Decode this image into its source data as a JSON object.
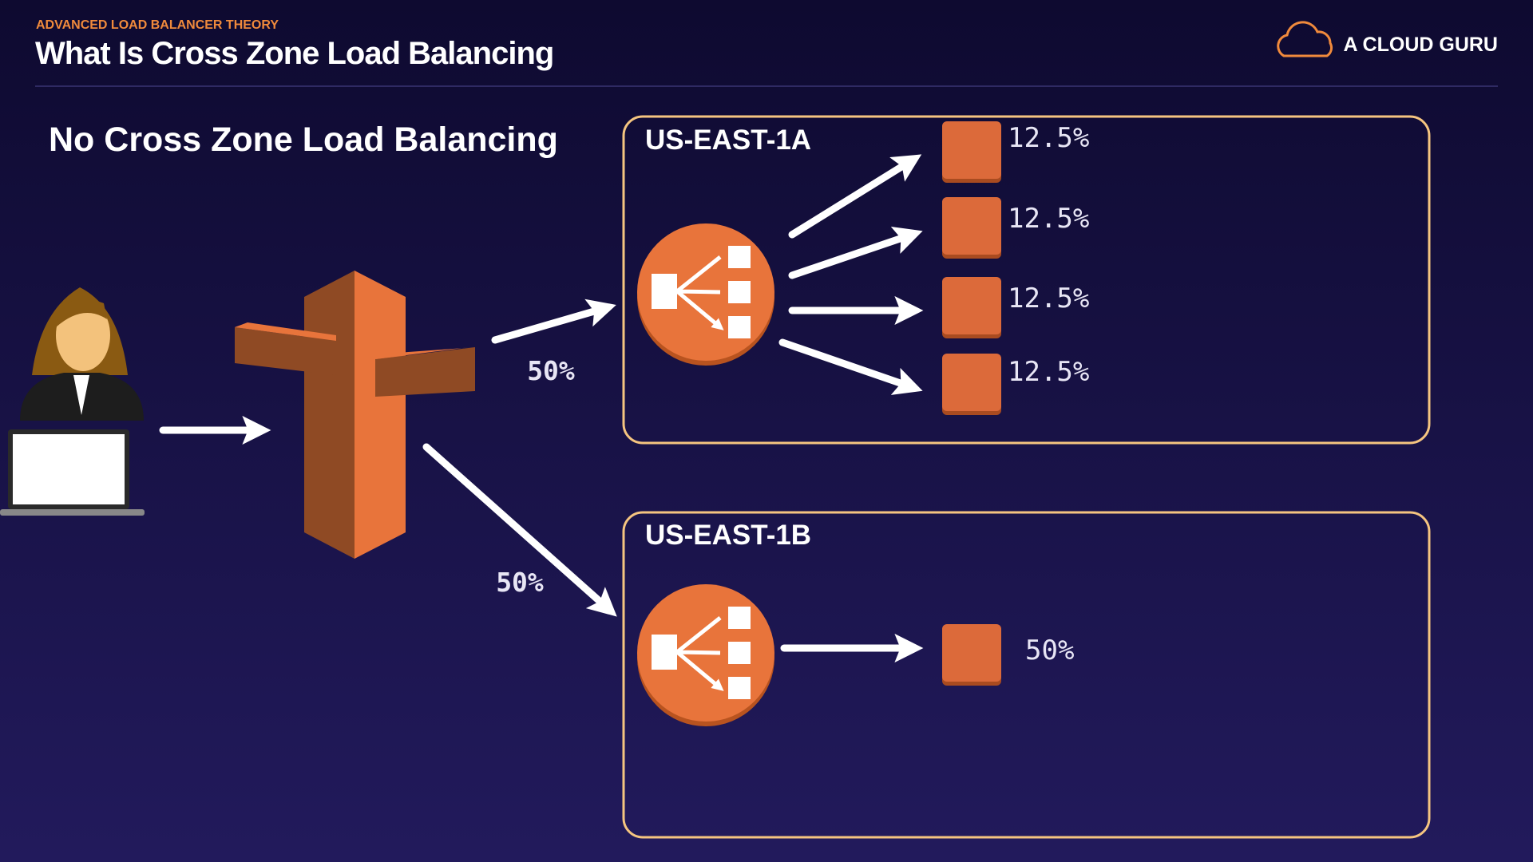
{
  "header": {
    "kicker": "ADVANCED LOAD BALANCER THEORY",
    "title": "What Is Cross Zone Load Balancing",
    "brand": "A CLOUD GURU"
  },
  "subtitle": "No Cross Zone Load Balancing",
  "flows": [
    {
      "label": "50%"
    },
    {
      "label": "50%"
    }
  ],
  "zones": [
    {
      "label": "US-EAST-1A",
      "targets": [
        "12.5%",
        "12.5%",
        "12.5%",
        "12.5%"
      ]
    },
    {
      "label": "US-EAST-1B",
      "targets": [
        "50%"
      ]
    }
  ]
}
